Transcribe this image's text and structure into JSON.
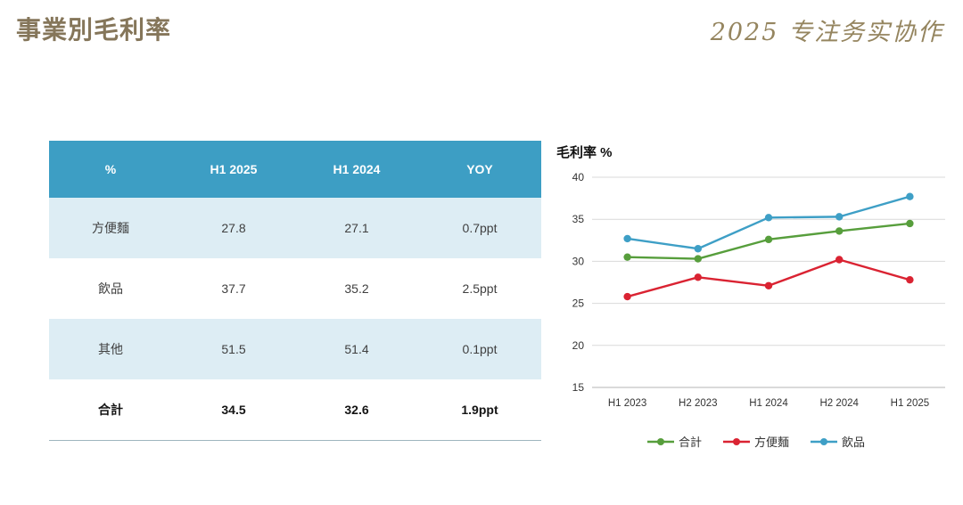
{
  "slide": {
    "title": "事業別毛利率",
    "watermark": "2025 专注务实协作"
  },
  "table": {
    "headers": [
      "%",
      "H1 2025",
      "H1 2024",
      "YOY"
    ],
    "rows": [
      {
        "cells": [
          "方便麵",
          "27.8",
          "27.1",
          "0.7ppt"
        ],
        "bold": false
      },
      {
        "cells": [
          "飲品",
          "37.7",
          "35.2",
          "2.5ppt"
        ],
        "bold": false
      },
      {
        "cells": [
          "其他",
          "51.5",
          "51.4",
          "0.1ppt"
        ],
        "bold": false
      },
      {
        "cells": [
          "合計",
          "34.5",
          "32.6",
          "1.9ppt"
        ],
        "bold": true
      }
    ]
  },
  "chart_data": {
    "type": "line",
    "title": "毛利率 %",
    "x": [
      "H1 2023",
      "H2 2023",
      "H1 2024",
      "H2 2024",
      "H1 2025"
    ],
    "series": [
      {
        "name": "合計",
        "color": "#579e3c",
        "values": [
          30.5,
          30.3,
          32.6,
          33.6,
          34.5
        ]
      },
      {
        "name": "方便麵",
        "color": "#da2332",
        "values": [
          25.8,
          28.1,
          27.1,
          30.2,
          27.8
        ]
      },
      {
        "name": "飲品",
        "color": "#3e9fc6",
        "values": [
          32.7,
          31.5,
          35.2,
          35.3,
          37.7
        ]
      }
    ],
    "ylim": [
      15,
      40
    ],
    "yticks": [
      15,
      20,
      25,
      30,
      35,
      40
    ],
    "grid": true,
    "legend_position": "bottom",
    "xlabel": "",
    "ylabel": "毛利率 %"
  },
  "colors": {
    "title": "#85765a",
    "table_header_bg": "#3d9ec4",
    "table_row_alt_bg": "#ddedf4",
    "grid_line": "#d9d9d9"
  }
}
